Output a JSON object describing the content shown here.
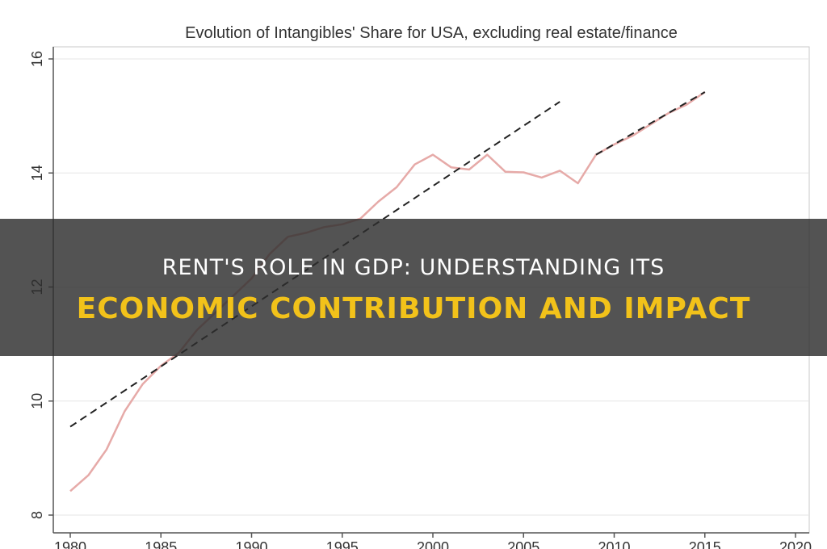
{
  "headline": {
    "line1": "RENT'S ROLE IN GDP: UNDERSTANDING ITS",
    "line2": "ECONOMIC CONTRIBUTION AND IMPACT"
  },
  "colors": {
    "series_line": "#e6aaa8",
    "trend_line": "#222222",
    "banner_text_primary": "#ffffff",
    "banner_text_accent": "#f2c21a"
  },
  "chart_data": {
    "type": "line",
    "title": "Evolution of Intangibles' Share for USA, excluding real estate/finance",
    "xlabel": "",
    "ylabel": "",
    "xlim": [
      1980,
      2020
    ],
    "ylim": [
      8,
      16
    ],
    "x_ticks": [
      "1980",
      "1985",
      "1990",
      "1995",
      "2000",
      "2005",
      "2010",
      "2015",
      "2020"
    ],
    "y_ticks": [
      "8",
      "10",
      "12",
      "14",
      "16"
    ],
    "grid": true,
    "series": [
      {
        "style": "solid",
        "x": [
          1980,
          1981,
          1982,
          1983,
          1984,
          1985,
          1986,
          1987,
          1988,
          1989,
          1990,
          1991,
          1992,
          1993,
          1994,
          1995,
          1996,
          1997,
          1998,
          1999,
          2000,
          2001,
          2002,
          2003,
          2004,
          2005,
          2006,
          2007,
          2008,
          2009,
          2010,
          2011,
          2012,
          2013,
          2014,
          2015
        ],
        "y": [
          8.42,
          8.7,
          9.15,
          9.82,
          10.3,
          10.62,
          10.85,
          11.25,
          11.55,
          11.85,
          12.15,
          12.58,
          12.88,
          12.95,
          13.05,
          13.1,
          13.2,
          13.5,
          13.75,
          14.15,
          14.32,
          14.1,
          14.06,
          14.32,
          14.02,
          14.01,
          13.92,
          14.04,
          13.82,
          14.32,
          14.5,
          14.65,
          14.85,
          15.05,
          15.2,
          15.42
        ]
      },
      {
        "style": "dashed",
        "x": [
          1980,
          2007
        ],
        "y": [
          9.55,
          15.25
        ]
      },
      {
        "style": "dashed",
        "x": [
          2009,
          2015
        ],
        "y": [
          14.32,
          15.42
        ]
      }
    ]
  }
}
